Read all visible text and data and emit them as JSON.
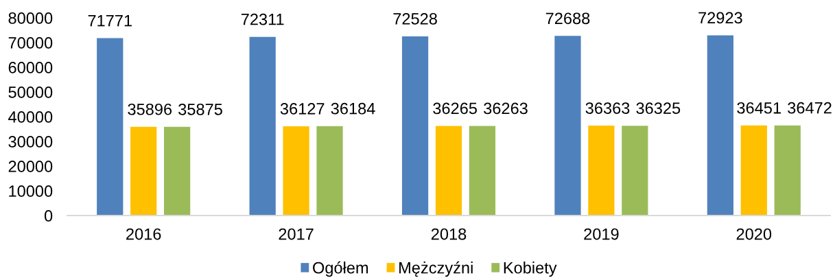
{
  "chart_data": {
    "type": "bar",
    "categories": [
      "2016",
      "2017",
      "2018",
      "2019",
      "2020"
    ],
    "series": [
      {
        "name": "Ogółem",
        "color": "#4f81bd",
        "values": [
          71771,
          72311,
          72528,
          72688,
          72923
        ]
      },
      {
        "name": "Mężczyźni",
        "color": "#ffc000",
        "values": [
          35896,
          36127,
          36265,
          36363,
          36451
        ]
      },
      {
        "name": "Kobiety",
        "color": "#9bbb59",
        "values": [
          35875,
          36184,
          36263,
          36325,
          36472
        ]
      }
    ],
    "ylim": [
      0,
      80000
    ],
    "yticks": [
      0,
      10000,
      20000,
      30000,
      40000,
      50000,
      60000,
      70000,
      80000
    ],
    "data_labels": true,
    "grid": false,
    "legend": "bottom"
  }
}
